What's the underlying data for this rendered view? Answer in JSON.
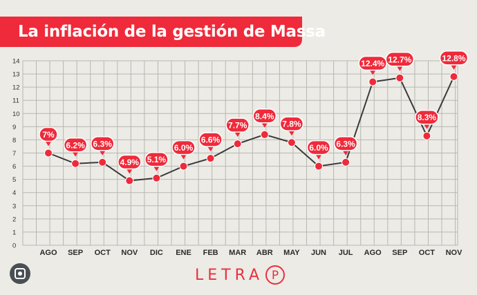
{
  "title": "La inflación de la gestión de Massa",
  "brand": {
    "name": "LETRA",
    "logo": "P"
  },
  "colors": {
    "accent": "#ef2a3a",
    "line": "#3a3a3a",
    "grid": "#b7b7b2",
    "background": "#ecebe6"
  },
  "icons": {
    "lens": "lens-search-icon"
  },
  "chart_data": {
    "type": "line",
    "title": "La inflación de la gestión de Massa",
    "categories": [
      "AGO",
      "SEP",
      "OCT",
      "NOV",
      "DIC",
      "ENE",
      "FEB",
      "MAR",
      "ABR",
      "MAY",
      "JUN",
      "JUL",
      "AGO",
      "SEP",
      "OCT",
      "NOV"
    ],
    "values": [
      7.0,
      6.2,
      6.3,
      4.9,
      5.1,
      6.0,
      6.6,
      7.7,
      8.4,
      7.8,
      6.0,
      6.3,
      12.4,
      12.7,
      8.3,
      12.8
    ],
    "labels": [
      "7%",
      "6.2%",
      "6.3%",
      "4.9%",
      "5.1%",
      "6.0%",
      "6.6%",
      "7.7%",
      "8.4%",
      "7.8%",
      "6.0%",
      "6.3%",
      "12.4%",
      "12.7%",
      "8.3%",
      "12.8%"
    ],
    "y_ticks": [
      "0",
      "1",
      "2",
      "3",
      "4",
      "5",
      "6",
      "7",
      "8",
      "9",
      "10",
      "11",
      "12",
      "13",
      "14"
    ],
    "ylim": [
      0,
      14
    ],
    "xlabel": "",
    "ylabel": "",
    "grid": true,
    "legend": "none"
  }
}
